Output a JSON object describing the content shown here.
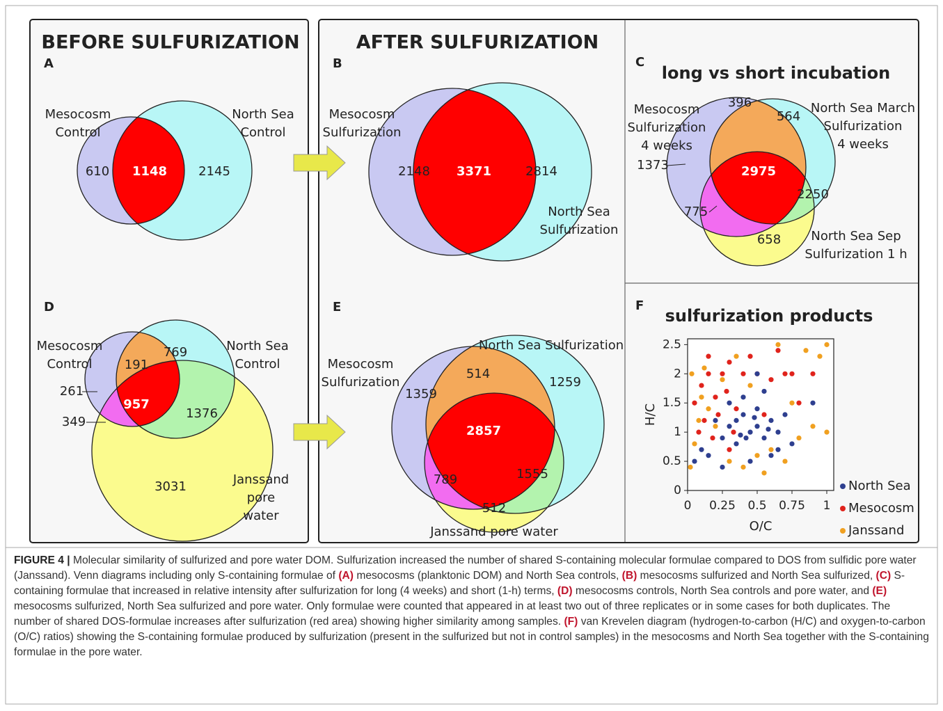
{
  "headings": {
    "before": "BEFORE  SULFURIZATION",
    "after": "AFTER SULFURIZATION"
  },
  "panels": {
    "A": {
      "label": "A",
      "sets": [
        [
          "Mesocosm",
          "Control"
        ],
        [
          "North Sea",
          "Control"
        ]
      ],
      "counts": [
        610,
        1148,
        2145
      ]
    },
    "B": {
      "label": "B",
      "sets": [
        [
          "Mesocosm",
          "Sulfurization"
        ],
        [
          "North Sea",
          "Sulfurization"
        ]
      ],
      "counts": [
        2148,
        3371,
        2814
      ]
    },
    "C": {
      "label": "C",
      "title": "long vs short incubation",
      "sets": [
        [
          "Mesocosm",
          "Sulfurization",
          "4 weeks"
        ],
        [
          "North Sea March",
          "Sulfurization",
          "4 weeks"
        ],
        [
          "North Sea Sep",
          "Sulfurization 1 h"
        ]
      ],
      "counts": [
        396,
        564,
        1373,
        2975,
        2250,
        775,
        658
      ]
    },
    "D": {
      "label": "D",
      "sets": [
        [
          "Mesocosm",
          "Control"
        ],
        [
          "North Sea",
          "Control"
        ],
        [
          "Janssand",
          "pore",
          "water"
        ]
      ],
      "counts": [
        191,
        769,
        261,
        957,
        1376,
        349,
        3031
      ]
    },
    "E": {
      "label": "E",
      "sets": [
        [
          "Mesocosm",
          "Sulfurization"
        ],
        [
          "North Sea Sulfurization"
        ],
        [
          "Janssand pore water"
        ]
      ],
      "counts": [
        514,
        1359,
        1259,
        2857,
        789,
        1555,
        512
      ]
    },
    "F": {
      "label": "F",
      "title": "sulfurization products"
    }
  },
  "chart_data": {
    "type": "scatter",
    "xlabel": "O/C",
    "ylabel": "H/C",
    "xlim": [
      0,
      1.05
    ],
    "ylim": [
      0,
      2.6
    ],
    "xticks": [
      0,
      0.25,
      0.5,
      0.75,
      1
    ],
    "yticks": [
      0,
      0.5,
      1,
      1.5,
      2,
      2.5
    ],
    "series": [
      {
        "name": "North Sea",
        "color": "#2e3f8f",
        "x": [
          0.05,
          0.1,
          0.15,
          0.2,
          0.25,
          0.3,
          0.35,
          0.4,
          0.45,
          0.5,
          0.55,
          0.6,
          0.65,
          0.7,
          0.75,
          0.3,
          0.4,
          0.5,
          0.6,
          0.45,
          0.35,
          0.55,
          0.25,
          0.65,
          0.5,
          0.42,
          0.58,
          0.38,
          0.48,
          0.9
        ],
        "y": [
          0.5,
          0.7,
          0.6,
          1.2,
          0.9,
          1.1,
          0.8,
          1.3,
          1.0,
          1.1,
          0.9,
          1.2,
          1.0,
          1.3,
          0.8,
          1.5,
          1.6,
          1.4,
          0.6,
          0.5,
          1.2,
          1.7,
          0.4,
          0.7,
          2.0,
          0.9,
          1.05,
          0.95,
          1.25,
          1.5
        ]
      },
      {
        "name": "Mesocosm",
        "color": "#e0231c",
        "x": [
          0.05,
          0.1,
          0.15,
          0.2,
          0.25,
          0.3,
          0.35,
          0.4,
          0.5,
          0.6,
          0.7,
          0.8,
          0.9,
          0.12,
          0.18,
          0.22,
          0.28,
          0.45,
          0.33,
          0.08,
          0.55,
          0.65,
          0.15,
          0.3,
          0.75
        ],
        "y": [
          1.5,
          1.8,
          2.0,
          1.6,
          2.0,
          2.2,
          1.4,
          2.0,
          2.0,
          1.9,
          2.0,
          1.5,
          2.0,
          1.2,
          0.9,
          1.3,
          1.7,
          2.3,
          1.0,
          1.0,
          1.3,
          2.4,
          2.3,
          0.7,
          2.0
        ]
      },
      {
        "name": "Janssand",
        "color": "#f0a020",
        "x": [
          0.02,
          0.05,
          0.08,
          0.1,
          0.15,
          0.2,
          0.3,
          0.4,
          0.5,
          0.6,
          0.7,
          0.8,
          0.9,
          1.0,
          0.95,
          0.85,
          0.12,
          0.25,
          0.35,
          0.65,
          0.75,
          0.55,
          0.45,
          0.03,
          1.0
        ],
        "y": [
          0.4,
          0.8,
          1.2,
          1.6,
          1.4,
          1.1,
          0.5,
          0.4,
          0.6,
          0.7,
          0.5,
          0.9,
          1.1,
          2.5,
          2.3,
          2.4,
          2.1,
          1.9,
          2.3,
          2.5,
          1.5,
          0.3,
          1.8,
          2.0,
          1.0
        ]
      }
    ]
  },
  "caption": [
    {
      "text": "FIGURE 4 |",
      "bold": true
    },
    {
      "text": " Molecular similarity of sulfurized and pore water DOM. Sulfurization increased the number of shared S-containing molecular formulae compared to DOS from sulfidic pore water (Janssand). Venn diagrams including only S-containing formulae of ",
      "bold": false
    },
    {
      "text": "(A)",
      "bold": true
    },
    {
      "text": " mesocosms (planktonic DOM) and North Sea controls, ",
      "bold": false
    },
    {
      "text": "(B)",
      "bold": true
    },
    {
      "text": " mesocosms sulfurized and North Sea sulfurized, ",
      "bold": false
    },
    {
      "text": "(C)",
      "bold": true
    },
    {
      "text": " S-containing formulae that increased in relative intensity after sulfurization for long (4 weeks) and short (1-h) terms, ",
      "bold": false
    },
    {
      "text": "(D)",
      "bold": true
    },
    {
      "text": " mesocosms controls, North Sea controls and pore water, and ",
      "bold": false
    },
    {
      "text": "(E)",
      "bold": true
    },
    {
      "text": " mesocosms sulfurized, North Sea sulfurized and pore water. Only formulae were counted that appeared in at least two out of three replicates or in some cases for both duplicates. The number of shared DOS-formulae increases after sulfurization (red area) showing higher similarity among samples. ",
      "bold": false
    },
    {
      "text": "(F)",
      "bold": true
    },
    {
      "text": " van Krevelen diagram (hydrogen-to-carbon (H/C) and oxygen-to-carbon (O/C) ratios) showing the S-containing formulae produced by sulfurization (present in the sulfurized but not in control samples) in the mesocosms and North Sea together with the S-containing formulae in the pore water.",
      "bold": false
    }
  ]
}
